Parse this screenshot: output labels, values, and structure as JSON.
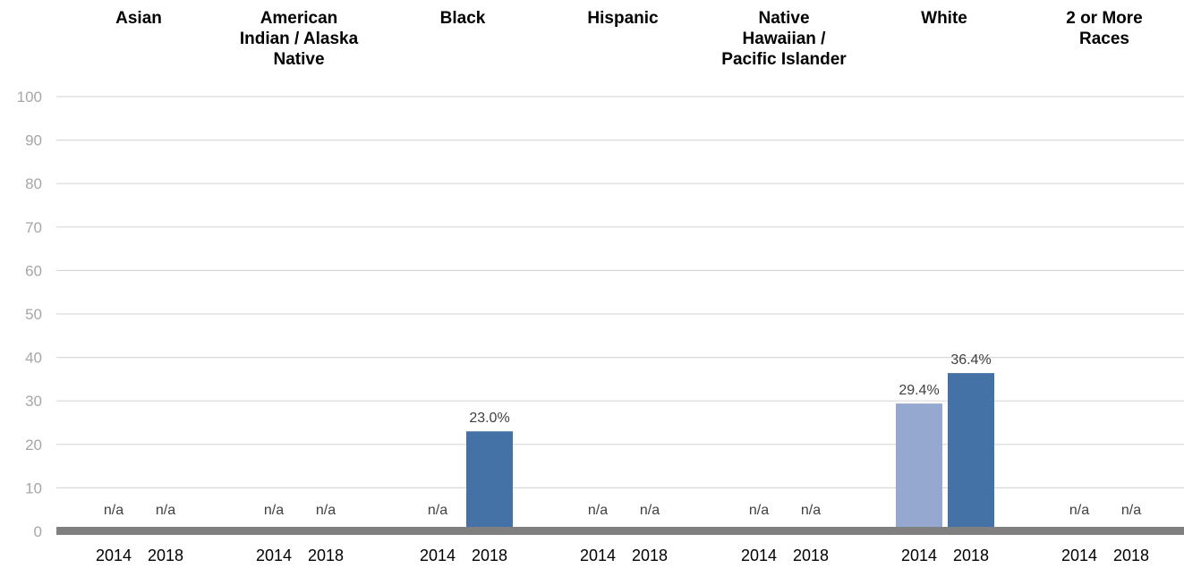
{
  "chart_data": {
    "type": "bar",
    "groups": [
      {
        "name": "Asian",
        "title_lines": [
          "Asian"
        ],
        "values": [
          null,
          null
        ],
        "labels": [
          "n/a",
          "n/a"
        ]
      },
      {
        "name": "American Indian / Alaska Native",
        "title_lines": [
          "American",
          "Indian / Alaska",
          "Native"
        ],
        "values": [
          null,
          null
        ],
        "labels": [
          "n/a",
          "n/a"
        ]
      },
      {
        "name": "Black",
        "title_lines": [
          "Black"
        ],
        "values": [
          null,
          23.0
        ],
        "labels": [
          "n/a",
          "23.0%"
        ]
      },
      {
        "name": "Hispanic",
        "title_lines": [
          "Hispanic"
        ],
        "values": [
          null,
          null
        ],
        "labels": [
          "n/a",
          "n/a"
        ]
      },
      {
        "name": "Native Hawaiian / Pacific Islander",
        "title_lines": [
          "Native",
          "Hawaiian /",
          "Pacific Islander"
        ],
        "values": [
          null,
          null
        ],
        "labels": [
          "n/a",
          "n/a"
        ]
      },
      {
        "name": "White",
        "title_lines": [
          "White"
        ],
        "values": [
          29.4,
          36.4
        ],
        "labels": [
          "29.4%",
          "36.4%"
        ]
      },
      {
        "name": "2 or More Races",
        "title_lines": [
          "2 or More",
          "Races"
        ],
        "values": [
          null,
          null
        ],
        "labels": [
          "n/a",
          "n/a"
        ]
      }
    ],
    "categories": [
      "2014",
      "2018"
    ],
    "series_colors": [
      "#95a9d0",
      "#4472a6"
    ],
    "ylim": [
      0,
      100
    ],
    "yticks": [
      0,
      10,
      20,
      30,
      40,
      50,
      60,
      70,
      80,
      90,
      100
    ],
    "grid": true,
    "grid_color": "#d9d9d9",
    "baseline_color": "#808080",
    "title": "",
    "xlabel": "",
    "ylabel": ""
  }
}
